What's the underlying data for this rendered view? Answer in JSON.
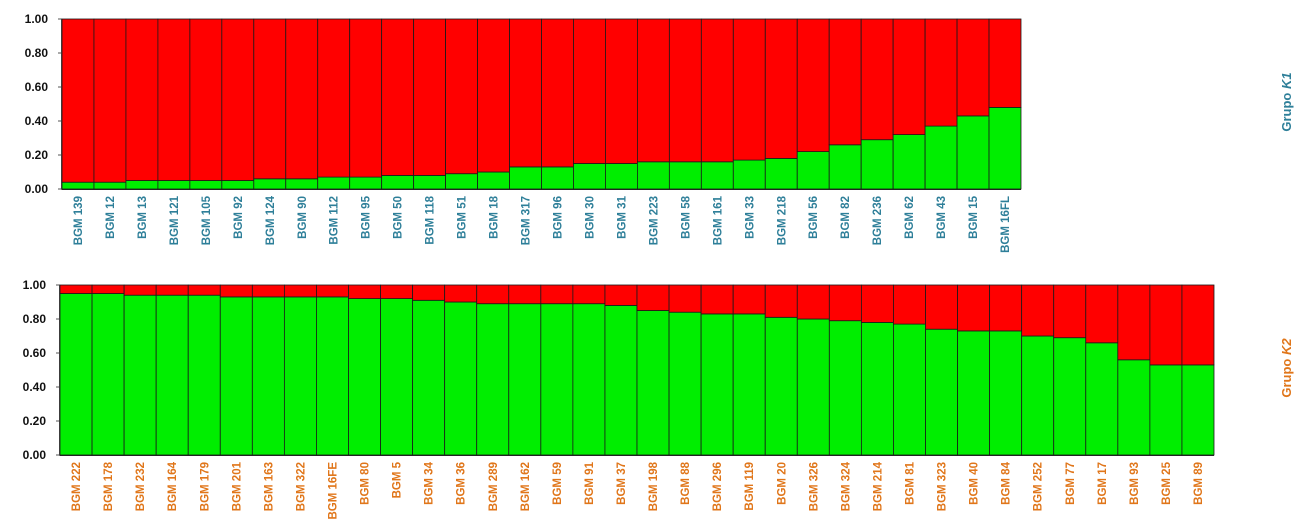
{
  "colors": {
    "cluster_red": "#FF0000",
    "cluster_green": "#00EE00",
    "k1_label": "#2E7F99",
    "k2_label": "#E0761A"
  },
  "chart_data": [
    {
      "type": "bar",
      "stacked": true,
      "group_label": {
        "prefix": "Grupo ",
        "k": "K1"
      },
      "label_color": "#2E7F99",
      "ylim": [
        0,
        1
      ],
      "yticks": [
        "0.00",
        "0.20",
        "0.40",
        "0.60",
        "0.80",
        "1.00"
      ],
      "categories": [
        "BGM 139",
        "BGM 12",
        "BGM 13",
        "BGM 121",
        "BGM 105",
        "BGM 92",
        "BGM 124",
        "BGM 90",
        "BGM 112",
        "BGM 95",
        "BGM 50",
        "BGM 118",
        "BGM 51",
        "BGM 18",
        "BGM 317",
        "BGM 96",
        "BGM 30",
        "BGM 31",
        "BGM 223",
        "BGM 58",
        "BGM 161",
        "BGM 33",
        "BGM 218",
        "BGM 56",
        "BGM 82",
        "BGM 236",
        "BGM 62",
        "BGM 43",
        "BGM 15",
        "BGM 16FL"
      ],
      "series": [
        {
          "color": "#00EE00",
          "values": [
            0.04,
            0.04,
            0.05,
            0.05,
            0.05,
            0.05,
            0.06,
            0.06,
            0.07,
            0.07,
            0.08,
            0.08,
            0.09,
            0.1,
            0.13,
            0.13,
            0.15,
            0.15,
            0.16,
            0.16,
            0.16,
            0.17,
            0.18,
            0.22,
            0.26,
            0.29,
            0.32,
            0.37,
            0.43,
            0.48
          ]
        },
        {
          "color": "#FF0000",
          "values": [
            0.96,
            0.96,
            0.95,
            0.95,
            0.95,
            0.95,
            0.94,
            0.94,
            0.93,
            0.93,
            0.92,
            0.92,
            0.91,
            0.9,
            0.87,
            0.87,
            0.85,
            0.85,
            0.84,
            0.84,
            0.84,
            0.83,
            0.82,
            0.78,
            0.74,
            0.71,
            0.68,
            0.63,
            0.57,
            0.52
          ]
        }
      ]
    },
    {
      "type": "bar",
      "stacked": true,
      "group_label": {
        "prefix": "Grupo ",
        "k": "K2"
      },
      "label_color": "#E0761A",
      "ylim": [
        0,
        1
      ],
      "yticks": [
        "0.00",
        "0.20",
        "0.40",
        "0.60",
        "0.80",
        "1.00"
      ],
      "categories": [
        "BGM 222",
        "BGM 178",
        "BGM 232",
        "BGM 164",
        "BGM 179",
        "BGM 201",
        "BGM 163",
        "BGM 322",
        "BGM 16FE",
        "BGM 80",
        "BGM 5",
        "BGM 34",
        "BGM 36",
        "BGM 289",
        "BGM 162",
        "BGM 59",
        "BGM 91",
        "BGM 37",
        "BGM 198",
        "BGM 88",
        "BGM 296",
        "BGM 119",
        "BGM 20",
        "BGM 326",
        "BGM 324",
        "BGM 214",
        "BGM 81",
        "BGM 323",
        "BGM 40",
        "BGM 84",
        "BGM 252",
        "BGM 77",
        "BGM 17",
        "BGM 93",
        "BGM 25",
        "BGM 89"
      ],
      "series": [
        {
          "color": "#00EE00",
          "values": [
            0.95,
            0.95,
            0.94,
            0.94,
            0.94,
            0.93,
            0.93,
            0.93,
            0.93,
            0.92,
            0.92,
            0.91,
            0.9,
            0.89,
            0.89,
            0.89,
            0.89,
            0.88,
            0.85,
            0.84,
            0.83,
            0.83,
            0.81,
            0.8,
            0.79,
            0.78,
            0.77,
            0.74,
            0.73,
            0.73,
            0.7,
            0.69,
            0.66,
            0.56,
            0.53,
            0.53
          ]
        },
        {
          "color": "#FF0000",
          "values": [
            0.05,
            0.05,
            0.06,
            0.06,
            0.06,
            0.07,
            0.07,
            0.07,
            0.07,
            0.08,
            0.08,
            0.09,
            0.1,
            0.11,
            0.11,
            0.11,
            0.11,
            0.12,
            0.15,
            0.16,
            0.17,
            0.17,
            0.19,
            0.2,
            0.21,
            0.22,
            0.23,
            0.26,
            0.27,
            0.27,
            0.3,
            0.31,
            0.34,
            0.44,
            0.47,
            0.47
          ]
        }
      ]
    }
  ]
}
